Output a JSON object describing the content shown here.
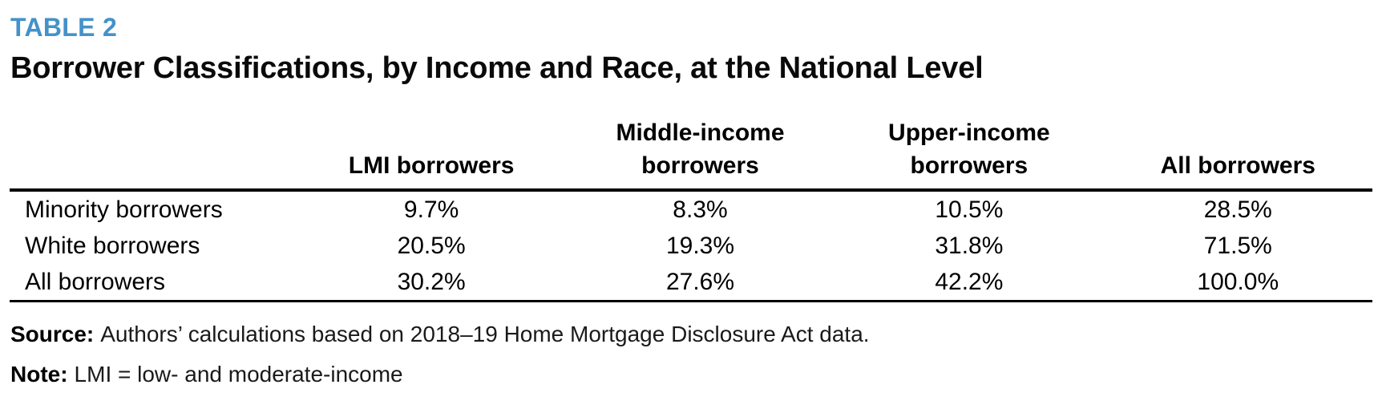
{
  "header": {
    "table_label": "TABLE 2",
    "title": "Borrower Classifications, by Income and Race, at the National Level",
    "accent_color": "#4492c9"
  },
  "table": {
    "columns": [
      "",
      "LMI borrowers",
      "Middle-income\nborrowers",
      "Upper-income\nborrowers",
      "All borrowers"
    ],
    "rows": [
      {
        "label": "Minority borrowers",
        "values": [
          "9.7%",
          "8.3%",
          "10.5%",
          "28.5%"
        ]
      },
      {
        "label": "White borrowers",
        "values": [
          "20.5%",
          "19.3%",
          "31.8%",
          "71.5%"
        ]
      },
      {
        "label": "All borrowers",
        "values": [
          "30.2%",
          "27.6%",
          "42.2%",
          "100.0%"
        ]
      }
    ]
  },
  "source": {
    "label": "Source:",
    "text": "Authors’ calculations based on 2018–19 Home Mortgage Disclosure Act data."
  },
  "note": {
    "label": "Note:",
    "text": "LMI = low- and moderate-income"
  }
}
